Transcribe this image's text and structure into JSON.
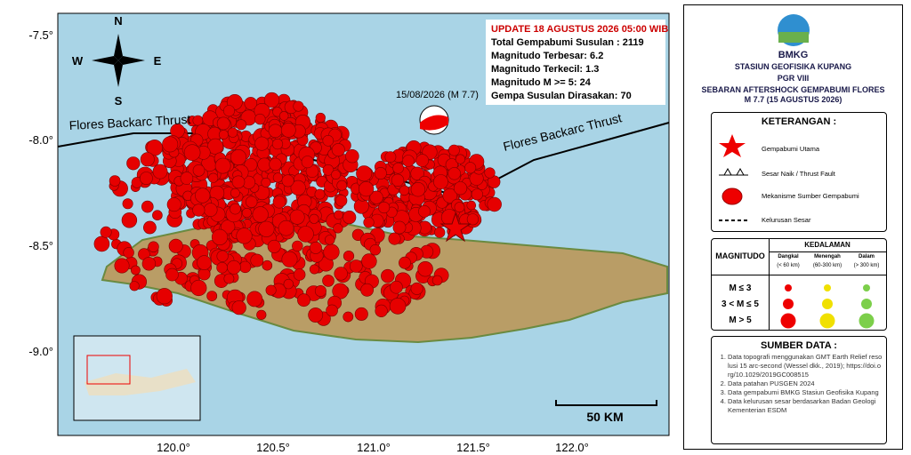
{
  "map": {
    "lat_ticks": [
      "-7.5°",
      "-8.0°",
      "-8.5°",
      "-9.0°"
    ],
    "lon_ticks": [
      "120.0°",
      "120.5°",
      "121.0°",
      "121.5°",
      "122.0°"
    ],
    "compass": [
      "N",
      "S",
      "W",
      "E"
    ],
    "fault_labels": [
      "Flores Backarc Thrust",
      "Flores Backarc Thrust"
    ],
    "mainshock_label": "15/08/2026 (M 7.7)",
    "scale_label": "50 KM",
    "info_box": {
      "title": "UPDATE 18 AGUSTUS 2026 05:00 WIB",
      "lines": [
        "Total Gempabumi Susulan : 2119",
        "Magnitudo Terbesar: 6.2",
        "Magnitudo Terkecil: 1.3",
        "Magnitudo M >= 5: 24",
        "Gempa Susulan Dirasakan: 70"
      ]
    }
  },
  "panel": {
    "logo": "BMKG",
    "station": "STASIUN GEOFISIKA KUPANG",
    "region": "PGR VIII",
    "title": "SEBARAN AFTERSHOCK GEMPABUMI FLORES",
    "subtitle": "M 7.7 (15 AGUSTUS 2026)",
    "legend": {
      "title": "KETERANGAN :",
      "items": [
        "Gempabumi Utama",
        "Sesar Naik / Thrust Fault",
        "Mekanisme Sumber Gempabumi",
        "Kelurusan Sesar"
      ]
    },
    "magnitude_table": {
      "header": "MAGNITUDO",
      "depth_title": "KEDALAMAN",
      "depth_columns": [
        [
          "Dangkal",
          "(< 60 km)"
        ],
        [
          "Menengah",
          "(60-300 km)"
        ],
        [
          "Dalam",
          "(> 300 km)"
        ]
      ],
      "rows": [
        "M ≤ 3",
        "3 < M ≤ 5",
        "M > 5"
      ]
    },
    "sources": {
      "title": "SUMBER DATA :",
      "items": [
        "Data topografi menggunakan GMT Earth Relief resolusi 15 arc-second (Wessel dkk., 2019); https://doi.org/10.1029/2019GC008515",
        "Data patahan PUSGEN 2024",
        "Data gempabumi BMKG Stasiun Geofisika Kupang",
        "Data kelurusan sesar berdasarkan Badan Geologi Kementerian ESDM"
      ]
    }
  }
}
